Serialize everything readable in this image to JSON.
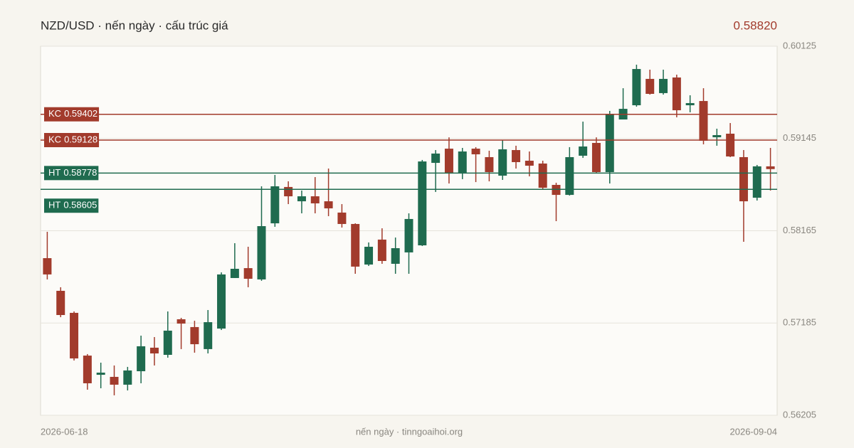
{
  "chart_data": {
    "type": "candlestick",
    "title": "NZD/USD · nến ngày · cấu trúc giá",
    "last_price": {
      "value": 0.5882,
      "label": "0.58820"
    },
    "source": "nến ngày · tinngoaihoi.org",
    "categories": [
      "2026-06-18",
      null,
      null,
      null,
      null,
      null,
      null,
      null,
      null,
      null,
      null,
      null,
      null,
      null,
      null,
      null,
      null,
      null,
      null,
      null,
      null,
      null,
      null,
      null,
      null,
      null,
      null,
      null,
      null,
      null,
      null,
      null,
      null,
      null,
      null,
      null,
      null,
      null,
      null,
      null,
      null,
      null,
      null,
      null,
      null,
      null,
      null,
      null,
      null,
      null,
      null,
      null,
      null,
      null,
      "2026-09-04"
    ],
    "open": [
      0.57874,
      0.57527,
      0.57293,
      0.56839,
      0.56635,
      0.56613,
      0.5653,
      0.56673,
      0.56923,
      0.56847,
      0.57225,
      0.57142,
      0.56908,
      0.57126,
      0.57663,
      0.57768,
      0.57648,
      0.58244,
      0.5863,
      0.58478,
      0.58531,
      0.58478,
      0.58358,
      0.58237,
      0.57806,
      0.58071,
      0.57814,
      0.57935,
      0.5801,
      0.58886,
      0.59037,
      0.58781,
      0.59037,
      0.58947,
      0.5875,
      0.59022,
      0.58909,
      0.58879,
      0.58652,
      0.58546,
      0.58962,
      0.59098,
      0.58788,
      0.59347,
      0.59498,
      0.59778,
      0.59627,
      0.59793,
      0.59498,
      0.59543,
      0.59158,
      0.59196,
      0.58947,
      0.58516,
      0.58849
    ],
    "high": [
      0.58154,
      0.57565,
      0.57308,
      0.56855,
      0.56764,
      0.56734,
      0.56719,
      0.57051,
      0.57036,
      0.57308,
      0.5724,
      0.57209,
      0.57323,
      0.57723,
      0.58033,
      0.57995,
      0.58637,
      0.58758,
      0.5869,
      0.58592,
      0.58735,
      0.58826,
      0.58448,
      0.58244,
      0.58041,
      0.58191,
      0.58093,
      0.5835,
      0.58917,
      0.59022,
      0.59157,
      0.59045,
      0.59053,
      0.59015,
      0.59128,
      0.59068,
      0.59007,
      0.58909,
      0.58675,
      0.59053,
      0.59324,
      0.59157,
      0.59438,
      0.59679,
      0.59929,
      0.59876,
      0.59876,
      0.59823,
      0.59604,
      0.59679,
      0.59249,
      0.59309,
      0.59022,
      0.58864,
      0.59045
    ],
    "low": [
      0.57648,
      0.57247,
      0.56787,
      0.56477,
      0.56492,
      0.56417,
      0.56469,
      0.56545,
      0.56734,
      0.56817,
      0.56908,
      0.5687,
      0.56862,
      0.57111,
      0.57663,
      0.57565,
      0.57633,
      0.58207,
      0.58448,
      0.5835,
      0.5835,
      0.5832,
      0.58199,
      0.57708,
      0.57791,
      0.57814,
      0.57708,
      0.57708,
      0.58003,
      0.58577,
      0.58667,
      0.58713,
      0.58682,
      0.5869,
      0.58705,
      0.58826,
      0.58743,
      0.58607,
      0.58267,
      0.58539,
      0.58939,
      0.58773,
      0.58667,
      0.59347,
      0.59483,
      0.59611,
      0.59611,
      0.5937,
      0.59423,
      0.59083,
      0.59068,
      0.58947,
      0.58048,
      0.58486,
      0.58592
    ],
    "close": [
      0.57701,
      0.5727,
      0.56809,
      0.56545,
      0.56658,
      0.5653,
      0.56681,
      0.56938,
      0.56862,
      0.57104,
      0.57179,
      0.5696,
      0.57194,
      0.57701,
      0.57761,
      0.57655,
      0.58214,
      0.58637,
      0.58531,
      0.58531,
      0.58456,
      0.58403,
      0.58237,
      0.57784,
      0.57995,
      0.57844,
      0.5798,
      0.5829,
      0.58901,
      0.58985,
      0.58781,
      0.59007,
      0.58977,
      0.58788,
      0.5903,
      0.58894,
      0.58856,
      0.58622,
      0.58546,
      0.58947,
      0.5906,
      0.58788,
      0.59407,
      0.5946,
      0.59883,
      0.59619,
      0.59778,
      0.59445,
      0.59521,
      0.59121,
      0.59181,
      0.58954,
      0.58478,
      0.58849,
      0.5882
    ],
    "up_color": "#1f6b4f",
    "down_color": "#a23b2c",
    "levels": [
      {
        "name": "KC",
        "value": 0.59402,
        "color": "#a23b2c"
      },
      {
        "name": "KC",
        "value": 0.59128,
        "color": "#a23b2c"
      },
      {
        "name": "HT",
        "value": 0.58778,
        "color": "#1f6b4f"
      },
      {
        "name": "HT",
        "value": 0.58605,
        "color": "#1f6b4f"
      }
    ],
    "ylim": [
      0.56205,
      0.60125
    ],
    "yticks": [
      0.56205,
      0.57185,
      0.58165,
      0.59145,
      0.60125
    ],
    "grid": true
  }
}
